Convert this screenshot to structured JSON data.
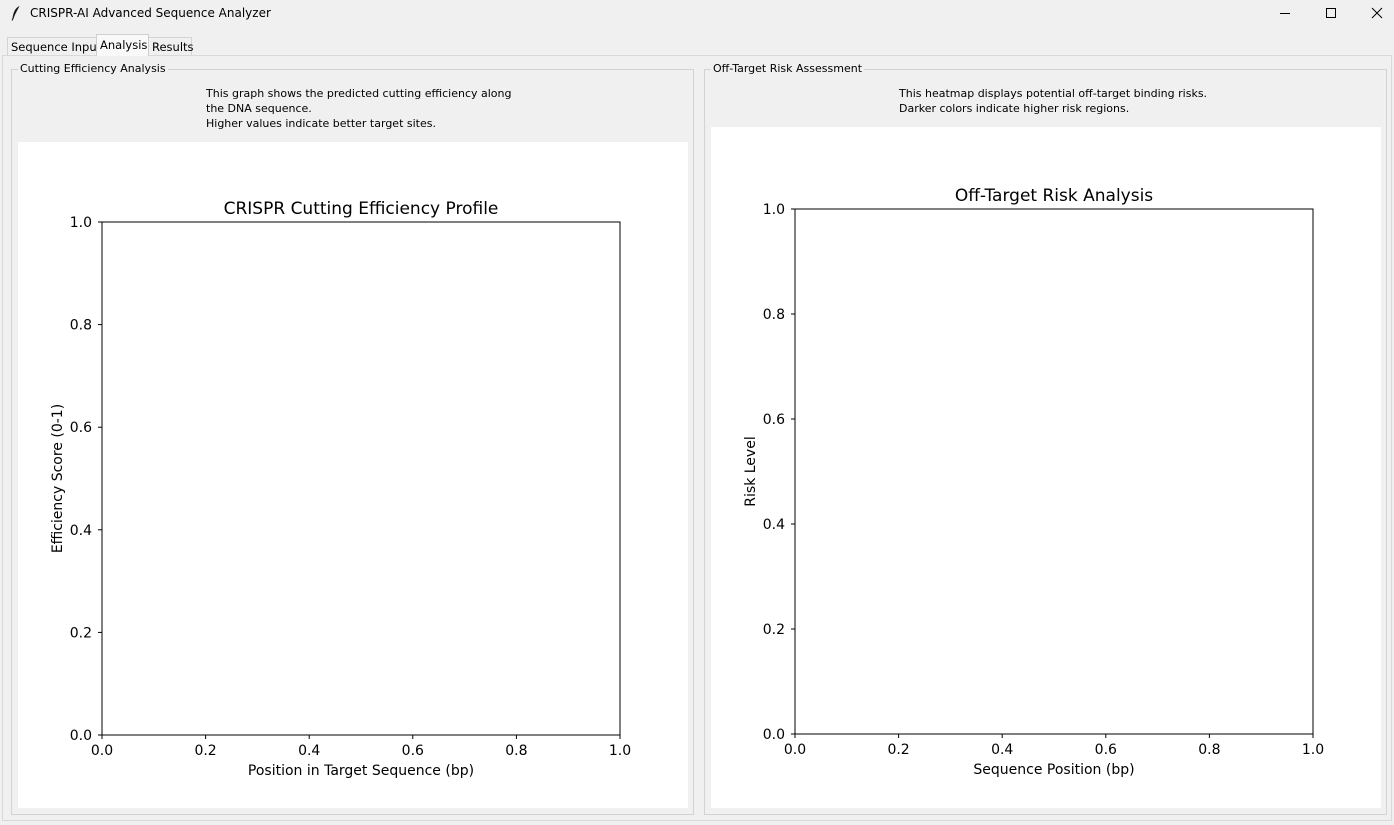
{
  "window": {
    "title": "CRISPR-AI Advanced Sequence Analyzer",
    "app_icon": "feather-icon",
    "controls": [
      "minimize-icon",
      "maximize-icon",
      "close-icon"
    ]
  },
  "tabs": [
    {
      "label": "Sequence Input"
    },
    {
      "label": "Analysis"
    },
    {
      "label": "Results"
    }
  ],
  "active_tab": "Analysis",
  "efficiency_panel": {
    "group_label": "Cutting Efficiency Analysis",
    "description": [
      "This graph shows the predicted cutting efficiency along",
      "the DNA sequence.",
      "Higher values indicate better target sites."
    ]
  },
  "risk_panel": {
    "group_label": "Off-Target Risk Assessment",
    "description": [
      "This heatmap displays potential off-target binding risks.",
      "Darker colors indicate higher risk regions."
    ]
  },
  "chart_data": [
    {
      "type": "line",
      "title": "CRISPR Cutting Efficiency Profile",
      "xlabel": "Position in Target Sequence (bp)",
      "ylabel": "Efficiency Score (0-1)",
      "xlim": [
        0,
        1
      ],
      "ylim": [
        0,
        1
      ],
      "xticks": [
        "0.0",
        "0.2",
        "0.4",
        "0.6",
        "0.8",
        "1.0"
      ],
      "yticks": [
        "0.0",
        "0.2",
        "0.4",
        "0.6",
        "0.8",
        "1.0"
      ],
      "series": [],
      "grid": false
    },
    {
      "type": "heatmap",
      "title": "Off-Target Risk Analysis",
      "xlabel": "Sequence Position (bp)",
      "ylabel": "Risk Level",
      "xlim": [
        0,
        1
      ],
      "ylim": [
        0,
        1
      ],
      "xticks": [
        "0.0",
        "0.2",
        "0.4",
        "0.6",
        "0.8",
        "1.0"
      ],
      "yticks": [
        "0.0",
        "0.2",
        "0.4",
        "0.6",
        "0.8",
        "1.0"
      ],
      "series": [],
      "grid": false
    }
  ]
}
